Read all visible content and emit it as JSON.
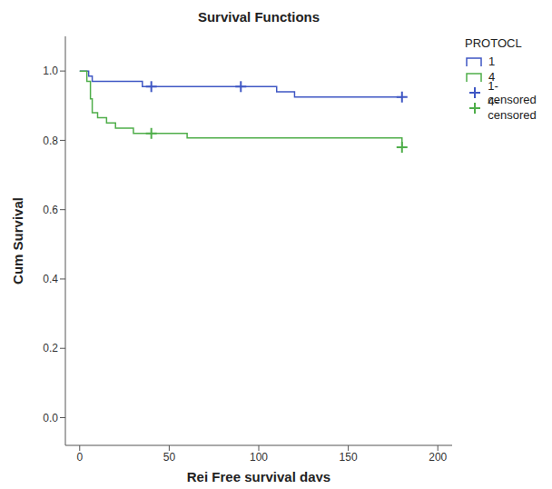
{
  "chart_data": {
    "type": "line",
    "title": "Survival Functions",
    "x_label": "Rej Free survival days",
    "y_label": "Cum Survival",
    "legend_title": "PROTOCL",
    "legend": "right",
    "grid": false,
    "xlim": [
      -8,
      208
    ],
    "xticks": [
      0,
      50,
      100,
      150,
      200
    ],
    "ylim": [
      -0.08,
      1.1
    ],
    "yticks": [
      {
        "value": 0,
        "label": "0.0"
      },
      {
        "value": 0.2,
        "label": "0.2"
      },
      {
        "value": 0.4,
        "label": "0.4"
      },
      {
        "value": 0.6,
        "label": "0.6"
      },
      {
        "value": 0.8,
        "label": "0.8"
      },
      {
        "value": 1,
        "label": "1.0"
      }
    ],
    "series": [
      {
        "name": "1",
        "color": "#3f57c4",
        "type": "line",
        "line_style": "step",
        "x": [
          0,
          5,
          7,
          35,
          110,
          120,
          180
        ],
        "values": [
          1.0,
          0.985,
          0.97,
          0.955,
          0.94,
          0.925,
          0.925
        ]
      },
      {
        "name": "4",
        "color": "#4fae4a",
        "type": "line",
        "line_style": "step",
        "x": [
          0,
          4,
          6,
          7,
          10,
          15,
          20,
          30,
          60,
          180
        ],
        "values": [
          1.0,
          0.97,
          0.92,
          0.88,
          0.865,
          0.85,
          0.835,
          0.82,
          0.807,
          0.78
        ]
      },
      {
        "name": "1-censored",
        "color": "#3f57c4",
        "type": "scatter",
        "marker": "plus",
        "x": [
          40,
          90,
          180
        ],
        "values": [
          0.955,
          0.955,
          0.925
        ]
      },
      {
        "name": "4-censored",
        "color": "#4fae4a",
        "type": "scatter",
        "marker": "plus",
        "x": [
          40,
          180
        ],
        "values": [
          0.82,
          0.78
        ]
      }
    ]
  }
}
